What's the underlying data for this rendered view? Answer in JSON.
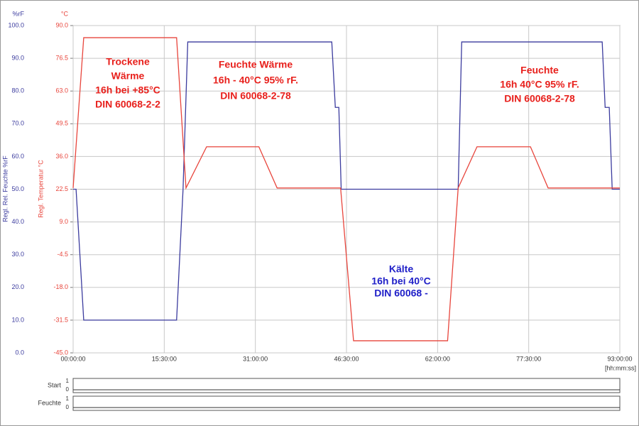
{
  "chart_data": {
    "type": "line",
    "y_unit": "%rF",
    "y2_unit": "°C",
    "y_label": "Regl. Rel. Feuchte %rF",
    "y2_label": "Regl. Temperatur °C",
    "x_unit": "[hh:mm:ss]",
    "xlim": [
      0,
      93
    ],
    "xticks": [
      {
        "value": 0,
        "label": "00:00:00"
      },
      {
        "value": 15.5,
        "label": "15:30:00"
      },
      {
        "value": 31,
        "label": "31:00:00"
      },
      {
        "value": 46.5,
        "label": "46:30:00"
      },
      {
        "value": 62,
        "label": "62:00:00"
      },
      {
        "value": 77.5,
        "label": "77:30:00"
      },
      {
        "value": 93,
        "label": "93:00:00"
      }
    ],
    "ylim": [
      0,
      100
    ],
    "yticks": [
      {
        "value": 0,
        "label": "0.0"
      },
      {
        "value": 10,
        "label": "10.0"
      },
      {
        "value": 20,
        "label": "20.0"
      },
      {
        "value": 30,
        "label": "30.0"
      },
      {
        "value": 40,
        "label": "40.0"
      },
      {
        "value": 50,
        "label": "50.0"
      },
      {
        "value": 60,
        "label": "60.0"
      },
      {
        "value": 70,
        "label": "70.0"
      },
      {
        "value": 80,
        "label": "80.0"
      },
      {
        "value": 90,
        "label": "90.0"
      },
      {
        "value": 100,
        "label": "100.0"
      }
    ],
    "y2lim": [
      -45,
      90
    ],
    "y2ticks": [
      {
        "value": -45,
        "label": "-45.0"
      },
      {
        "value": -31.5,
        "label": "-31.5"
      },
      {
        "value": -18,
        "label": "-18.0"
      },
      {
        "value": -4.5,
        "label": "-4.5"
      },
      {
        "value": 9,
        "label": "9.0"
      },
      {
        "value": 22.5,
        "label": "22.5"
      },
      {
        "value": 36,
        "label": "36.0"
      },
      {
        "value": 49.5,
        "label": "49.5"
      },
      {
        "value": 63,
        "label": "63.0"
      },
      {
        "value": 76.5,
        "label": "76.5"
      },
      {
        "value": 90,
        "label": "90.0"
      }
    ],
    "grid": true,
    "series": [
      {
        "color": "#3b3b9e",
        "axis": "y",
        "x": [
          0,
          0.5,
          1.8,
          17.6,
          18.7,
          19.5,
          44.0,
          44.6,
          45.2,
          45.6,
          65.5,
          66.1,
          90.0,
          90.5,
          91.2,
          91.7,
          93
        ],
        "values": [
          50,
          50,
          10,
          10,
          50,
          95,
          95,
          75,
          75,
          50,
          50,
          95,
          95,
          75,
          75,
          50,
          50
        ]
      },
      {
        "color": "#e8453c",
        "axis": "y2",
        "x": [
          0,
          1.8,
          17.6,
          19.2,
          22.7,
          31.6,
          34.7,
          45.5,
          47.7,
          63.7,
          65.5,
          68.7,
          77.8,
          80.8,
          93
        ],
        "values": [
          23,
          85,
          85,
          23,
          40,
          40,
          23,
          23,
          -40,
          -40,
          23,
          40,
          40,
          23,
          23
        ]
      }
    ],
    "annotations": [
      {
        "color": "#e8201c",
        "lines": [
          "Trockene",
          "Wärme",
          "16h bei +85°C",
          "DIN 60068-2-2"
        ]
      },
      {
        "color": "#e8201c",
        "lines": [
          "Feuchte Wärme",
          "16h - 40°C 95%  rF.",
          "DIN 60068-2-78"
        ]
      },
      {
        "color": "#e8201c",
        "lines": [
          "Feuchte",
          "16h   40°C 95%  rF.",
          "DIN 60068-2-78"
        ]
      },
      {
        "color": "#2020c8",
        "lines": [
          "Kälte",
          "16h bei  40°C",
          "DIN 60068   -"
        ]
      }
    ],
    "channels": [
      "Start",
      "Feuchte"
    ],
    "channel_ticks": [
      1,
      0
    ]
  }
}
